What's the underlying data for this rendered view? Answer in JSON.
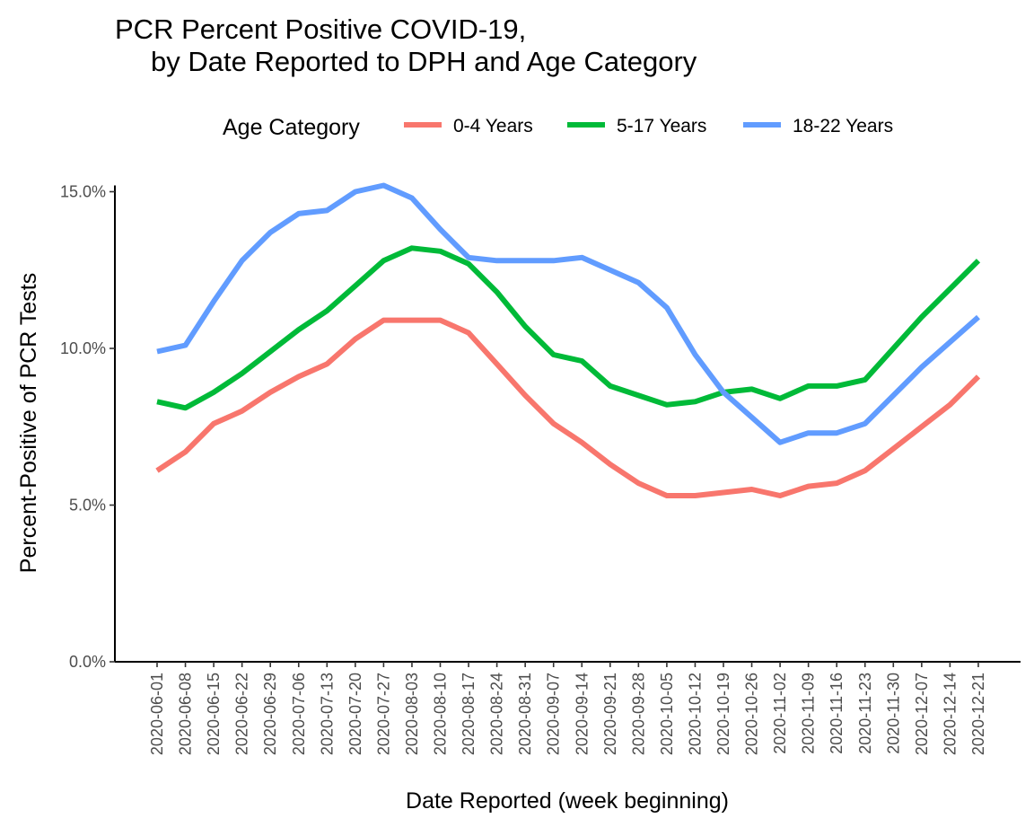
{
  "chart_data": {
    "type": "line",
    "title_line1": "PCR Percent Positive COVID-19,",
    "title_line2": "by Date Reported to DPH and Age Category",
    "xlabel": "Date Reported (week beginning)",
    "ylabel": "Percent-Positive of PCR Tests",
    "legend_title": "Age Category",
    "legend_position": "top",
    "grid": false,
    "ylim": [
      0,
      15.2
    ],
    "y_ticks": [
      0,
      5,
      10,
      15
    ],
    "y_tick_labels": [
      "0.0%",
      "5.0%",
      "10.0%",
      "15.0%"
    ],
    "x": [
      "2020-06-01",
      "2020-06-08",
      "2020-06-15",
      "2020-06-22",
      "2020-06-29",
      "2020-07-06",
      "2020-07-13",
      "2020-07-20",
      "2020-07-27",
      "2020-08-03",
      "2020-08-10",
      "2020-08-17",
      "2020-08-24",
      "2020-08-31",
      "2020-09-07",
      "2020-09-14",
      "2020-09-21",
      "2020-09-28",
      "2020-10-05",
      "2020-10-12",
      "2020-10-19",
      "2020-10-26",
      "2020-11-02",
      "2020-11-09",
      "2020-11-16",
      "2020-11-23",
      "2020-11-30",
      "2020-12-07",
      "2020-12-14",
      "2020-12-21"
    ],
    "series": [
      {
        "name": "0-4 Years",
        "color": "#F8766D",
        "values": [
          6.1,
          6.7,
          7.6,
          8.0,
          8.6,
          9.1,
          9.5,
          10.3,
          10.9,
          10.9,
          10.9,
          10.5,
          9.5,
          8.5,
          7.6,
          7.0,
          6.3,
          5.7,
          5.3,
          5.3,
          5.4,
          5.5,
          5.3,
          5.6,
          5.7,
          6.1,
          6.8,
          7.5,
          8.2,
          9.1
        ]
      },
      {
        "name": "5-17 Years",
        "color": "#00BA38",
        "values": [
          8.3,
          8.1,
          8.6,
          9.2,
          9.9,
          10.6,
          11.2,
          12.0,
          12.8,
          13.2,
          13.1,
          12.7,
          11.8,
          10.7,
          9.8,
          9.6,
          8.8,
          8.5,
          8.2,
          8.3,
          8.6,
          8.7,
          8.4,
          8.8,
          8.8,
          9.0,
          10.0,
          11.0,
          11.9,
          12.8
        ]
      },
      {
        "name": "18-22 Years",
        "color": "#619CFF",
        "values": [
          9.9,
          10.1,
          11.5,
          12.8,
          13.7,
          14.3,
          14.4,
          15.0,
          15.2,
          14.8,
          13.8,
          12.9,
          12.8,
          12.8,
          12.8,
          12.9,
          12.5,
          12.1,
          11.3,
          9.8,
          8.6,
          7.8,
          7.0,
          7.3,
          7.3,
          7.6,
          8.5,
          9.4,
          10.2,
          11.0
        ]
      }
    ]
  }
}
